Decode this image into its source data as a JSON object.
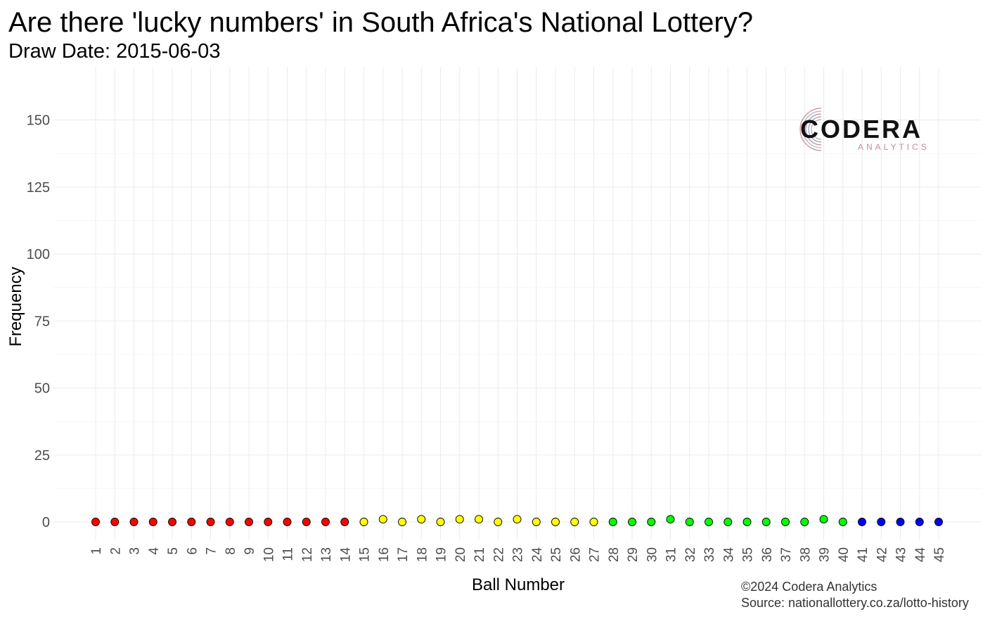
{
  "chart_data": {
    "type": "scatter",
    "title": "Are there 'lucky numbers' in South Africa's National Lottery?",
    "subtitle": "Draw Date: 2015-06-03",
    "xlabel": "Ball Number",
    "ylabel": "Frequency",
    "ylim": [
      0,
      158
    ],
    "yticks": [
      0,
      25,
      50,
      75,
      100,
      125,
      150
    ],
    "x": [
      1,
      2,
      3,
      4,
      5,
      6,
      7,
      8,
      9,
      10,
      11,
      12,
      13,
      14,
      15,
      16,
      17,
      18,
      19,
      20,
      21,
      22,
      23,
      24,
      25,
      26,
      27,
      28,
      29,
      30,
      31,
      32,
      33,
      34,
      35,
      36,
      37,
      38,
      39,
      40,
      41,
      42,
      43,
      44,
      45
    ],
    "values": [
      0,
      0,
      0,
      0,
      0,
      0,
      0,
      0,
      0,
      0,
      0,
      0,
      0,
      0,
      0,
      1,
      0,
      1,
      0,
      1,
      1,
      0,
      1,
      0,
      0,
      0,
      0,
      0,
      0,
      0,
      1,
      0,
      0,
      0,
      0,
      0,
      0,
      0,
      1,
      0,
      0,
      0,
      0,
      0,
      0
    ],
    "color_groups": [
      {
        "range": [
          1,
          14
        ],
        "color": "#ff0000"
      },
      {
        "range": [
          15,
          27
        ],
        "color": "#ffff00"
      },
      {
        "range": [
          28,
          40
        ],
        "color": "#00ff00"
      },
      {
        "range": [
          41,
          45
        ],
        "color": "#0000ff"
      }
    ],
    "grid": true,
    "legend": "none"
  },
  "caption": {
    "line1": "©2024 Codera Analytics",
    "line2": "Source: nationallottery.co.za/lotto-history"
  },
  "logo": {
    "name": "CODERA",
    "tagline": "ANALYTICS"
  }
}
